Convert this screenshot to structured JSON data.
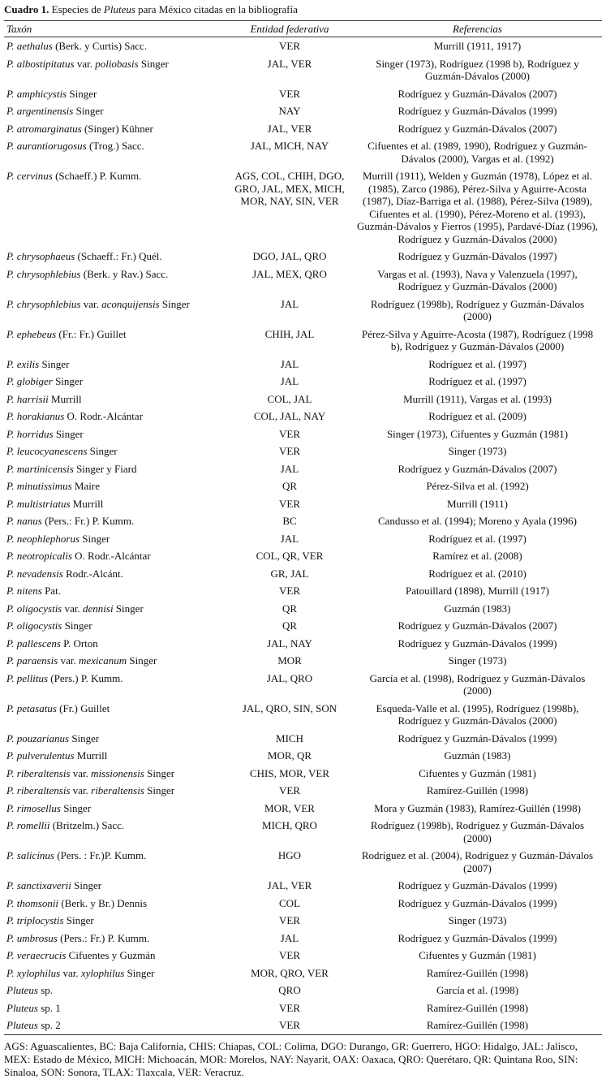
{
  "title": [
    {
      "text": "Cuadro 1.",
      "bold": true,
      "italic": false
    },
    {
      "text": "Especies de",
      "bold": false,
      "italic": false
    },
    {
      "text": "Pluteus",
      "bold": false,
      "italic": true
    },
    {
      "text": "para México citadas en la bibliografía",
      "bold": false,
      "italic": false
    }
  ],
  "table": {
    "columns": [
      "Taxón",
      "Entidad federativa",
      "Referencias"
    ],
    "rows": [
      {
        "taxon": [
          {
            "text": "P. aethalus",
            "italic": true
          },
          {
            "text": "(Berk. y Curtis) Sacc.",
            "italic": false
          }
        ],
        "entidad": "VER",
        "referencias": "Murrill (1911, 1917)"
      },
      {
        "taxon": [
          {
            "text": "P. albostipitatus",
            "italic": true
          },
          {
            "text": "var.",
            "italic": false
          },
          {
            "text": "poliobasis",
            "italic": true
          },
          {
            "text": "Singer",
            "italic": false
          }
        ],
        "entidad": "JAL, VER",
        "referencias": "Singer (1973), Rodríguez (1998 b), Rodríguez y Guzmán-Dávalos (2000)"
      },
      {
        "taxon": [
          {
            "text": "P. amphicystis",
            "italic": true
          },
          {
            "text": "Singer",
            "italic": false
          }
        ],
        "entidad": "VER",
        "referencias": "Rodríguez y Guzmán-Dávalos (2007)"
      },
      {
        "taxon": [
          {
            "text": "P. argentinensis",
            "italic": true
          },
          {
            "text": "Singer",
            "italic": false
          }
        ],
        "entidad": "NAY",
        "referencias": "Rodríguez y Guzmán-Dávalos (1999)"
      },
      {
        "taxon": [
          {
            "text": "P. atromarginatus",
            "italic": true
          },
          {
            "text": "(Singer) Kühner",
            "italic": false
          }
        ],
        "entidad": "JAL, VER",
        "referencias": "Rodríguez y Guzmán-Dávalos (2007)"
      },
      {
        "taxon": [
          {
            "text": "P. aurantiorugosus",
            "italic": true
          },
          {
            "text": "(Trog.) Sacc.",
            "italic": false
          }
        ],
        "entidad": "JAL, MICH, NAY",
        "referencias": "Cifuentes et al. (1989, 1990), Rodríguez y Guzmán-Dávalos (2000), Vargas et al. (1992)"
      },
      {
        "taxon": [
          {
            "text": "P. cervinus",
            "italic": true
          },
          {
            "text": "(Schaeff.) P. Kumm.",
            "italic": false
          }
        ],
        "entidad": "AGS, COL, CHIH, DGO, GRO, JAL, MEX, MICH, MOR, NAY, SIN, VER",
        "referencias": "Murrill (1911), Welden y Guzmán (1978), López et al. (1985), Zarco (1986), Pérez-Silva y Aguirre-Acosta (1987), Díaz-Barriga et al. (1988), Pérez-Silva (1989), Cifuentes et al. (1990), Pérez-Moreno et al. (1993), Guzmán-Dávalos y Fierros (1995), Pardavé-Díaz (1996), Rodríguez y Guzmán-Dávalos (2000)"
      },
      {
        "taxon": [
          {
            "text": "P. chrysophaeus",
            "italic": true
          },
          {
            "text": "(Schaeff.: Fr.) Quél.",
            "italic": false
          }
        ],
        "entidad": "DGO, JAL, QRO",
        "referencias": "Rodríguez y Guzmán-Dávalos (1997)"
      },
      {
        "taxon": [
          {
            "text": "P. chrysophlebius",
            "italic": true
          },
          {
            "text": "(Berk. y Rav.) Sacc.",
            "italic": false
          }
        ],
        "entidad": "JAL, MEX, QRO",
        "referencias": "Vargas et al. (1993), Nava y Valenzuela (1997), Rodríguez y Guzmán-Dávalos (2000)"
      },
      {
        "taxon": [
          {
            "text": "P. chrysophlebius",
            "italic": true
          },
          {
            "text": "var.",
            "italic": false
          },
          {
            "text": "aconquijensis",
            "italic": true
          },
          {
            "text": "Singer",
            "italic": false
          }
        ],
        "entidad": "JAL",
        "referencias": "Rodríguez (1998b), Rodríguez y Guzmán-Dávalos (2000)"
      },
      {
        "taxon": [
          {
            "text": "P. ephebeus",
            "italic": true
          },
          {
            "text": "(Fr.: Fr.) Guillet",
            "italic": false
          }
        ],
        "entidad": "CHIH, JAL",
        "referencias": "Pérez-Silva y Aguirre-Acosta (1987), Rodríguez (1998 b), Rodríguez y Guzmán-Dávalos (2000)"
      },
      {
        "taxon": [
          {
            "text": "P. exilis",
            "italic": true
          },
          {
            "text": "Singer",
            "italic": false
          }
        ],
        "entidad": "JAL",
        "referencias": "Rodríguez et al. (1997)"
      },
      {
        "taxon": [
          {
            "text": "P. globiger",
            "italic": true
          },
          {
            "text": "Singer",
            "italic": false
          }
        ],
        "entidad": "JAL",
        "referencias": "Rodríguez et al. (1997)"
      },
      {
        "taxon": [
          {
            "text": "P. harrisii",
            "italic": true
          },
          {
            "text": "Murrill",
            "italic": false
          }
        ],
        "entidad": "COL, JAL",
        "referencias": "Murrill (1911), Vargas et al. (1993)"
      },
      {
        "taxon": [
          {
            "text": "P. horakianus",
            "italic": true
          },
          {
            "text": "O. Rodr.-Alcántar",
            "italic": false
          }
        ],
        "entidad": "COL, JAL, NAY",
        "referencias": "Rodríguez et al. (2009)"
      },
      {
        "taxon": [
          {
            "text": "P. horridus",
            "italic": true
          },
          {
            "text": "Singer",
            "italic": false
          }
        ],
        "entidad": "VER",
        "referencias": "Singer (1973), Cifuentes y Guzmán (1981)"
      },
      {
        "taxon": [
          {
            "text": "P. leucocyanescens",
            "italic": true
          },
          {
            "text": "Singer",
            "italic": false
          }
        ],
        "entidad": "VER",
        "referencias": "Singer (1973)"
      },
      {
        "taxon": [
          {
            "text": "P. martinicensis",
            "italic": true
          },
          {
            "text": "Singer y Fiard",
            "italic": false
          }
        ],
        "entidad": "JAL",
        "referencias": "Rodríguez y Guzmán-Dávalos (2007)"
      },
      {
        "taxon": [
          {
            "text": "P. minutissimus",
            "italic": true
          },
          {
            "text": "Maire",
            "italic": false
          }
        ],
        "entidad": "QR",
        "referencias": "Pérez-Silva et al. (1992)"
      },
      {
        "taxon": [
          {
            "text": "P. multistriatus",
            "italic": true
          },
          {
            "text": "Murrill",
            "italic": false
          }
        ],
        "entidad": "VER",
        "referencias": "Murrill (1911)"
      },
      {
        "taxon": [
          {
            "text": "P. nanus",
            "italic": true
          },
          {
            "text": "(Pers.: Fr.) P. Kumm.",
            "italic": false
          }
        ],
        "entidad": "BC",
        "referencias": "Candusso et al. (1994); Moreno y Ayala (1996)"
      },
      {
        "taxon": [
          {
            "text": "P. neophlephorus",
            "italic": true
          },
          {
            "text": "Singer",
            "italic": false
          }
        ],
        "entidad": "JAL",
        "referencias": "Rodríguez et al. (1997)"
      },
      {
        "taxon": [
          {
            "text": "P. neotropicalis",
            "italic": true
          },
          {
            "text": "O. Rodr.-Alcántar",
            "italic": false
          }
        ],
        "entidad": "COL, QR, VER",
        "referencias": "Ramírez et al. (2008)"
      },
      {
        "taxon": [
          {
            "text": "P. nevadensis",
            "italic": true
          },
          {
            "text": "Rodr.-Alcánt.",
            "italic": false
          }
        ],
        "entidad": "GR, JAL",
        "referencias": "Rodríguez et al. (2010)"
      },
      {
        "taxon": [
          {
            "text": "P. nitens",
            "italic": true
          },
          {
            "text": "Pat.",
            "italic": false
          }
        ],
        "entidad": "VER",
        "referencias": "Patouillard (1898), Murrill (1917)"
      },
      {
        "taxon": [
          {
            "text": "P. oligocystis",
            "italic": true
          },
          {
            "text": "var.",
            "italic": false
          },
          {
            "text": "dennisi",
            "italic": true
          },
          {
            "text": "Singer",
            "italic": false
          }
        ],
        "entidad": "QR",
        "referencias": "Guzmán (1983)"
      },
      {
        "taxon": [
          {
            "text": "P. oligocystis",
            "italic": true
          },
          {
            "text": "Singer",
            "italic": false
          }
        ],
        "entidad": "QR",
        "referencias": "Rodríguez y Guzmán-Dávalos (2007)"
      },
      {
        "taxon": [
          {
            "text": "P. pallescens",
            "italic": true
          },
          {
            "text": "P. Orton",
            "italic": false
          }
        ],
        "entidad": "JAL, NAY",
        "referencias": "Rodríguez y Guzmán-Dávalos (1999)"
      },
      {
        "taxon": [
          {
            "text": "P. paraensis",
            "italic": true
          },
          {
            "text": "var.",
            "italic": false
          },
          {
            "text": "mexicanum",
            "italic": true
          },
          {
            "text": "Singer",
            "italic": false
          }
        ],
        "entidad": "MOR",
        "referencias": "Singer (1973)"
      },
      {
        "taxon": [
          {
            "text": "P. pellitus",
            "italic": true
          },
          {
            "text": "(Pers.) P. Kumm.",
            "italic": false
          }
        ],
        "entidad": "JAL, QRO",
        "referencias": "García et al. (1998), Rodríguez y Guzmán-Dávalos (2000)"
      },
      {
        "taxon": [
          {
            "text": "P. petasatus",
            "italic": true
          },
          {
            "text": "(Fr.) Guillet",
            "italic": false
          }
        ],
        "entidad": "JAL, QRO, SIN, SON",
        "referencias": "Esqueda-Valle et al. (1995), Rodríguez (1998b), Rodríguez y Guzmán-Dávalos (2000)"
      },
      {
        "taxon": [
          {
            "text": "P. pouzarianus",
            "italic": true
          },
          {
            "text": "Singer",
            "italic": false
          }
        ],
        "entidad": "MICH",
        "referencias": "Rodríguez y Guzmán-Dávalos (1999)"
      },
      {
        "taxon": [
          {
            "text": "P. pulverulentus",
            "italic": true
          },
          {
            "text": "Murrill",
            "italic": false
          }
        ],
        "entidad": "MOR, QR",
        "referencias": "Guzmán (1983)"
      },
      {
        "taxon": [
          {
            "text": "P. riberaltensis",
            "italic": true
          },
          {
            "text": "var.",
            "italic": false
          },
          {
            "text": "missionensis",
            "italic": true
          },
          {
            "text": "Singer",
            "italic": false
          }
        ],
        "entidad": "CHIS, MOR, VER",
        "referencias": "Cifuentes y Guzmán (1981)"
      },
      {
        "taxon": [
          {
            "text": "P. riberaltensis",
            "italic": true
          },
          {
            "text": "var.",
            "italic": false
          },
          {
            "text": "riberaltensis",
            "italic": true
          },
          {
            "text": "Singer",
            "italic": false
          }
        ],
        "entidad": "VER",
        "referencias": "Ramírez-Guillén (1998)"
      },
      {
        "taxon": [
          {
            "text": "P. rimosellus",
            "italic": true
          },
          {
            "text": "Singer",
            "italic": false
          }
        ],
        "entidad": "MOR, VER",
        "referencias": "Mora y Guzmán (1983), Ramírez-Guillén (1998)"
      },
      {
        "taxon": [
          {
            "text": "P. romellii",
            "italic": true
          },
          {
            "text": "(Britzelm.) Sacc.",
            "italic": false
          }
        ],
        "entidad": "MICH, QRO",
        "referencias": "Rodríguez (1998b), Rodríguez y Guzmán-Dávalos (2000)"
      },
      {
        "taxon": [
          {
            "text": "P. salicinus",
            "italic": true
          },
          {
            "text": "(Pers. : Fr.)P. Kumm.",
            "italic": false
          }
        ],
        "entidad": "HGO",
        "referencias": "Rodríguez et al. (2004), Rodríguez y Guzmán-Dávalos (2007)"
      },
      {
        "taxon": [
          {
            "text": "P. sanctixaverii",
            "italic": true
          },
          {
            "text": "Singer",
            "italic": false
          }
        ],
        "entidad": "JAL, VER",
        "referencias": "Rodríguez y Guzmán-Dávalos (1999)"
      },
      {
        "taxon": [
          {
            "text": "P. thomsonii",
            "italic": true
          },
          {
            "text": "(Berk. y Br.) Dennis",
            "italic": false
          }
        ],
        "entidad": "COL",
        "referencias": "Rodríguez y Guzmán-Dávalos (1999)"
      },
      {
        "taxon": [
          {
            "text": "P. triplocystis",
            "italic": true
          },
          {
            "text": "Singer",
            "italic": false
          }
        ],
        "entidad": "VER",
        "referencias": "Singer (1973)"
      },
      {
        "taxon": [
          {
            "text": "P. umbrosus",
            "italic": true
          },
          {
            "text": "(Pers.: Fr.) P. Kumm.",
            "italic": false
          }
        ],
        "entidad": "JAL",
        "referencias": "Rodríguez y Guzmán-Dávalos (1999)"
      },
      {
        "taxon": [
          {
            "text": "P. veraecrucis",
            "italic": true
          },
          {
            "text": "Cifuentes y Guzmán",
            "italic": false
          }
        ],
        "entidad": "VER",
        "referencias": "Cifuentes y Guzmán (1981)"
      },
      {
        "taxon": [
          {
            "text": "P. xylophilus",
            "italic": true
          },
          {
            "text": "var.",
            "italic": false
          },
          {
            "text": "xylophilus",
            "italic": true
          },
          {
            "text": "Singer",
            "italic": false
          }
        ],
        "entidad": "MOR, QRO, VER",
        "referencias": "Ramírez-Guillén (1998)"
      },
      {
        "taxon": [
          {
            "text": "Pluteus",
            "italic": true
          },
          {
            "text": "sp.",
            "italic": false
          }
        ],
        "entidad": "QRO",
        "referencias": "García et al. (1998)"
      },
      {
        "taxon": [
          {
            "text": "Pluteus",
            "italic": true
          },
          {
            "text": "sp. 1",
            "italic": false
          }
        ],
        "entidad": "VER",
        "referencias": "Ramírez-Guillén (1998)"
      },
      {
        "taxon": [
          {
            "text": "Pluteus",
            "italic": true
          },
          {
            "text": "sp. 2",
            "italic": false
          }
        ],
        "entidad": "VER",
        "referencias": "Ramírez-Guillén (1998)"
      }
    ]
  },
  "footnote": "AGS: Aguascalientes, BC: Baja California, CHIS: Chiapas, COL: Colima, DGO: Durango, GR: Guerrero, HGO: Hidalgo, JAL: Jalisco, MEX: Estado de México, MICH: Michoacán, MOR: Morelos, NAY: Nayarit, OAX: Oaxaca, QRO: Querétaro, QR: Quintana Roo, SIN: Sinaloa, SON: Sonora, TLAX: Tlaxcala, VER: Veracruz."
}
